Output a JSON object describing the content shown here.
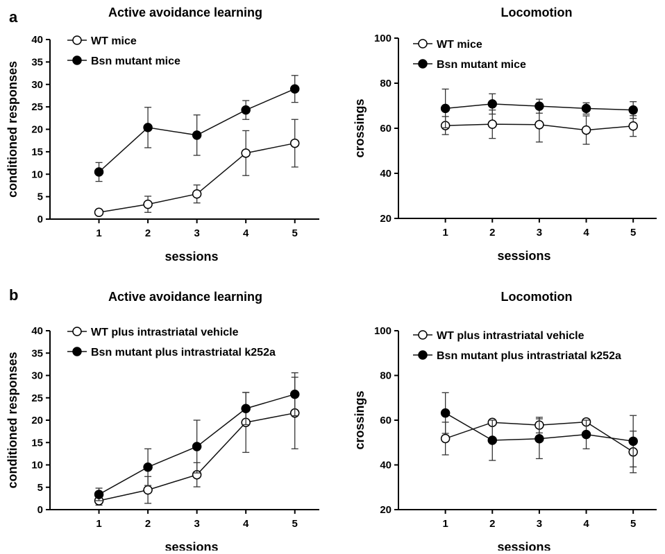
{
  "panels": {
    "a": "a",
    "b": "b"
  },
  "chart_data": [
    {
      "type": "line",
      "panel": "a",
      "title": "Active avoidance learning",
      "xlabel": "sessions",
      "ylabel": "conditioned responses",
      "x": [
        1,
        2,
        3,
        4,
        5
      ],
      "xlim": [
        0,
        5.5
      ],
      "ylim": [
        0,
        40
      ],
      "yticks": [
        0,
        5,
        10,
        15,
        20,
        25,
        30,
        35,
        40
      ],
      "legend_position": "top-left",
      "series": [
        {
          "name": "WT mice",
          "marker": "open-circle",
          "values": [
            1.5,
            3.3,
            5.6,
            14.7,
            16.9
          ],
          "errors": [
            0.6,
            1.8,
            2.0,
            5.0,
            5.3
          ]
        },
        {
          "name": "Bsn mutant mice",
          "marker": "filled-circle",
          "values": [
            10.5,
            20.4,
            18.7,
            24.3,
            29.0
          ],
          "errors": [
            2.1,
            4.5,
            4.5,
            2.1,
            3.0
          ]
        }
      ]
    },
    {
      "type": "line",
      "panel": "a",
      "title": "Locomotion",
      "xlabel": "sessions",
      "ylabel": "crossings",
      "x": [
        1,
        2,
        3,
        4,
        5
      ],
      "xlim": [
        0,
        5.5
      ],
      "ylim": [
        20,
        100
      ],
      "yticks": [
        20,
        40,
        60,
        80,
        100
      ],
      "legend_position": "top-left",
      "series": [
        {
          "name": "WT mice",
          "marker": "open-circle",
          "values": [
            61.2,
            61.8,
            61.6,
            59.2,
            61.0
          ],
          "errors": [
            4.0,
            6.3,
            7.7,
            6.3,
            4.6
          ]
        },
        {
          "name": "Bsn mutant mice",
          "marker": "filled-circle",
          "values": [
            68.8,
            70.8,
            69.8,
            68.8,
            68.1
          ],
          "errors": [
            8.6,
            4.5,
            3.1,
            2.5,
            3.7
          ]
        }
      ]
    },
    {
      "type": "line",
      "panel": "b",
      "title": "Active avoidance learning",
      "xlabel": "sessions",
      "ylabel": "conditioned responses",
      "x": [
        1,
        2,
        3,
        4,
        5
      ],
      "xlim": [
        0,
        5.5
      ],
      "ylim": [
        0,
        40
      ],
      "yticks": [
        0,
        5,
        10,
        15,
        20,
        25,
        30,
        35,
        40
      ],
      "legend_position": "top-left",
      "series": [
        {
          "name": "WT plus intrastriatal vehicle",
          "marker": "open-circle",
          "values": [
            2.0,
            4.4,
            7.8,
            19.5,
            21.6
          ],
          "errors": [
            1.0,
            3.0,
            2.7,
            6.7,
            8.0
          ]
        },
        {
          "name": "Bsn mutant plus intrastriatal k252a",
          "marker": "filled-circle",
          "values": [
            3.4,
            9.5,
            14.1,
            22.6,
            25.8
          ],
          "errors": [
            1.4,
            4.1,
            5.9,
            3.6,
            4.8
          ]
        }
      ]
    },
    {
      "type": "line",
      "panel": "b",
      "title": "Locomotion",
      "xlabel": "sessions",
      "ylabel": "crossings",
      "x": [
        1,
        2,
        3,
        4,
        5
      ],
      "xlim": [
        0,
        5.5
      ],
      "ylim": [
        20,
        100
      ],
      "yticks": [
        20,
        40,
        60,
        80,
        100
      ],
      "legend_position": "top-left",
      "series": [
        {
          "name": "WT plus intrastriatal vehicle",
          "marker": "open-circle",
          "values": [
            51.8,
            59.0,
            57.8,
            59.2,
            45.8
          ],
          "errors": [
            7.3,
            1.0,
            3.5,
            1.0,
            9.3
          ]
        },
        {
          "name": "Bsn mutant plus intrastriatal k252a",
          "marker": "filled-circle",
          "values": [
            63.2,
            51.0,
            51.7,
            53.6,
            50.6
          ],
          "errors": [
            9.1,
            9.0,
            8.9,
            6.4,
            11.5
          ]
        }
      ]
    }
  ]
}
